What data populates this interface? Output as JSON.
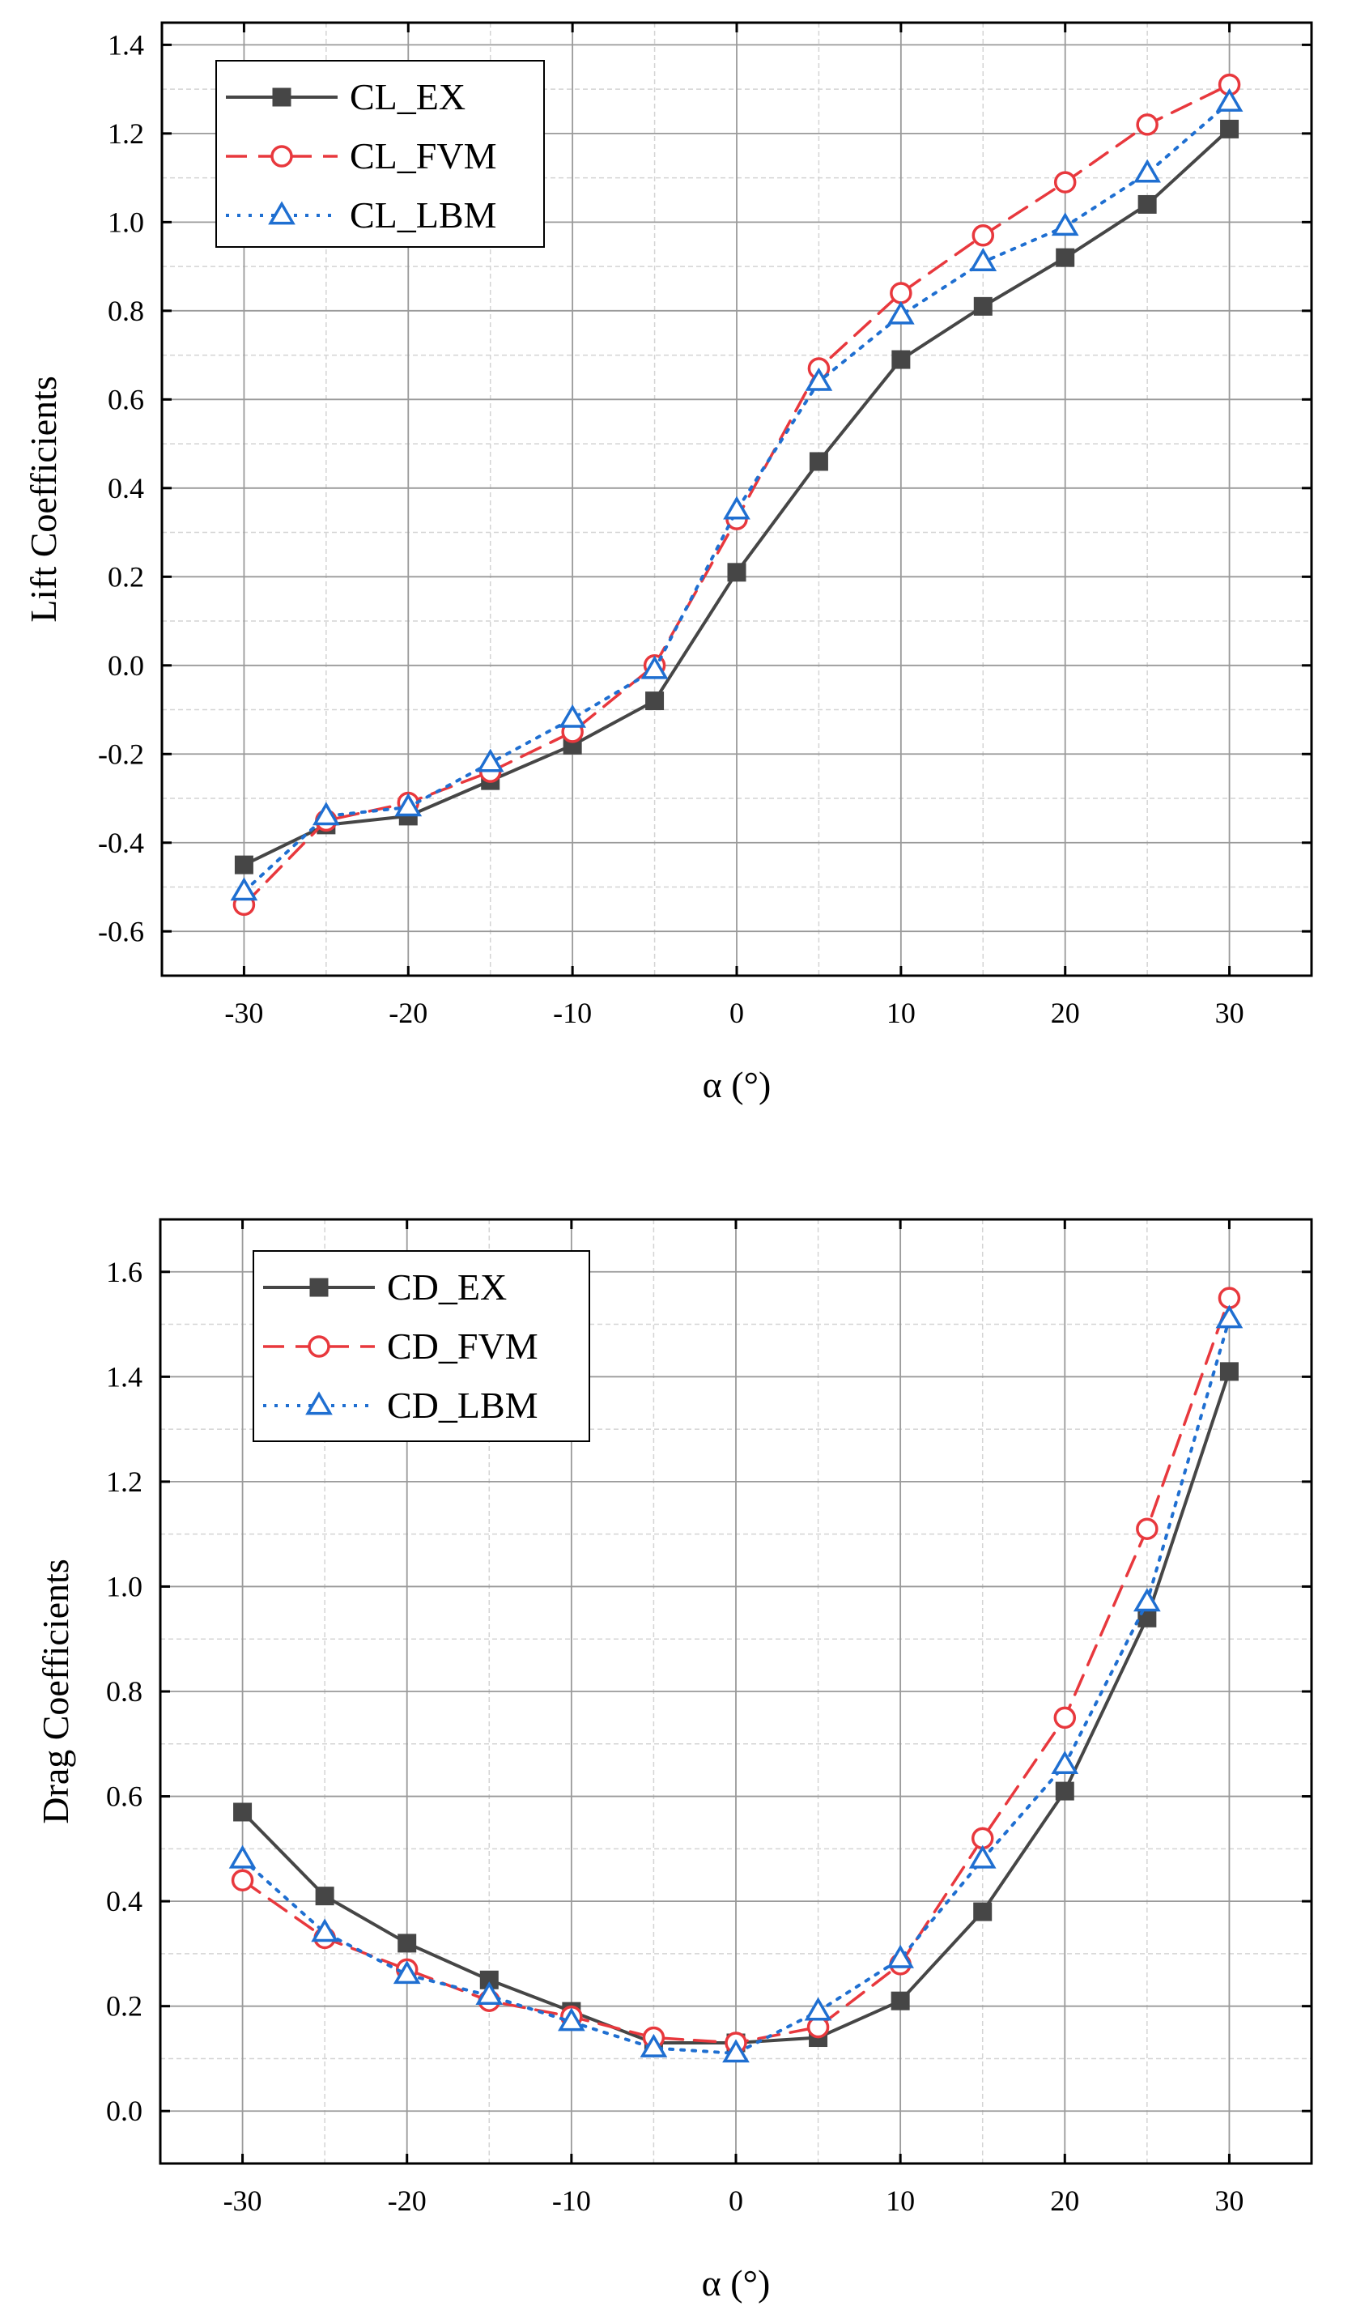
{
  "colors": {
    "ex": "#464646",
    "fvm": "#e8383d",
    "lbm": "#1f6fd1",
    "grid_major": "#9a9a9a",
    "grid_minor": "#d4d4d4",
    "axis": "#000000"
  },
  "chart_data": [
    {
      "type": "line",
      "id": "lift",
      "title": "",
      "xlabel": "α (°)",
      "ylabel": "Lift Coefficients",
      "xlim": [
        -35,
        35
      ],
      "ylim": [
        -0.7,
        1.45
      ],
      "xticks": [
        -30,
        -20,
        -10,
        0,
        10,
        20,
        30
      ],
      "xtick_labels": [
        "-30",
        "-20",
        "-10",
        "0",
        "10",
        "20",
        "30"
      ],
      "yticks": [
        -0.6,
        -0.4,
        -0.2,
        0.0,
        0.2,
        0.4,
        0.6,
        0.8,
        1.0,
        1.2,
        1.4
      ],
      "ytick_labels": [
        "-0.6",
        "-0.4",
        "-0.2",
        "0.0",
        "0.2",
        "0.4",
        "0.6",
        "0.8",
        "1.0",
        "1.2",
        "1.4"
      ],
      "grid": true,
      "legend_position": "top-left",
      "x": [
        -30,
        -25,
        -20,
        -15,
        -10,
        -5,
        0,
        5,
        10,
        15,
        20,
        25,
        30
      ],
      "series": [
        {
          "name": "CL_EX",
          "style": "ex",
          "values": [
            -0.45,
            -0.36,
            -0.34,
            -0.26,
            -0.18,
            -0.08,
            0.21,
            0.46,
            0.69,
            0.81,
            0.92,
            1.04,
            1.21
          ]
        },
        {
          "name": "CL_FVM",
          "style": "fvm",
          "values": [
            -0.54,
            -0.35,
            -0.31,
            -0.24,
            -0.15,
            0.0,
            0.33,
            0.67,
            0.84,
            0.97,
            1.09,
            1.22,
            1.31
          ]
        },
        {
          "name": "CL_LBM",
          "style": "lbm",
          "values": [
            -0.51,
            -0.34,
            -0.32,
            -0.22,
            -0.12,
            -0.01,
            0.35,
            0.64,
            0.79,
            0.91,
            0.99,
            1.11,
            1.27
          ]
        }
      ]
    },
    {
      "type": "line",
      "id": "drag",
      "title": "",
      "xlabel": "α (°)",
      "ylabel": "Drag Coefficients",
      "xlim": [
        -35,
        35
      ],
      "ylim": [
        -0.1,
        1.7
      ],
      "xticks": [
        -30,
        -20,
        -10,
        0,
        10,
        20,
        30
      ],
      "xtick_labels": [
        "-30",
        "-20",
        "-10",
        "0",
        "10",
        "20",
        "30"
      ],
      "yticks": [
        0.0,
        0.2,
        0.4,
        0.6,
        0.8,
        1.0,
        1.2,
        1.4,
        1.6
      ],
      "ytick_labels": [
        "0.0",
        "0.2",
        "0.4",
        "0.6",
        "0.8",
        "1.0",
        "1.2",
        "1.4",
        "1.6"
      ],
      "grid": true,
      "legend_position": "top-left",
      "x": [
        -30,
        -25,
        -20,
        -15,
        -10,
        -5,
        0,
        5,
        10,
        15,
        20,
        25,
        30
      ],
      "series": [
        {
          "name": "CD_EX",
          "style": "ex",
          "values": [
            0.57,
            0.41,
            0.32,
            0.25,
            0.19,
            0.13,
            0.13,
            0.14,
            0.21,
            0.38,
            0.61,
            0.94,
            1.41
          ]
        },
        {
          "name": "CD_FVM",
          "style": "fvm",
          "values": [
            0.44,
            0.33,
            0.27,
            0.21,
            0.18,
            0.14,
            0.13,
            0.16,
            0.28,
            0.52,
            0.75,
            1.11,
            1.55
          ]
        },
        {
          "name": "CD_LBM",
          "style": "lbm",
          "values": [
            0.48,
            0.34,
            0.26,
            0.22,
            0.17,
            0.12,
            0.11,
            0.19,
            0.29,
            0.48,
            0.66,
            0.97,
            1.51
          ]
        }
      ]
    }
  ]
}
